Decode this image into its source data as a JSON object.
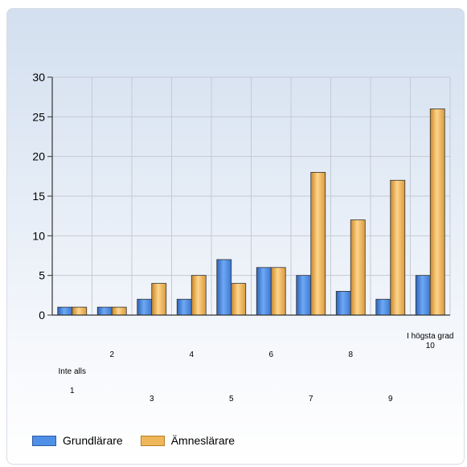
{
  "chart_data": {
    "type": "bar",
    "categories": [
      "Inte alls\n1",
      "2",
      "3",
      "4",
      "5",
      "6",
      "7",
      "8",
      "9",
      "I högsta grad\n10"
    ],
    "series": [
      {
        "name": "Grundlärare",
        "values": [
          1,
          1,
          2,
          2,
          7,
          6,
          5,
          3,
          2,
          5
        ],
        "color": "#4f8fe6"
      },
      {
        "name": "Ämneslärare",
        "values": [
          1,
          1,
          4,
          5,
          4,
          6,
          18,
          12,
          17,
          26
        ],
        "color": "#f0b65a"
      }
    ],
    "y_ticks": [
      "0",
      "5",
      "10",
      "15",
      "20",
      "25",
      "30"
    ],
    "ylim": [
      0,
      30
    ],
    "grid": true,
    "legend_position": "bottom-left"
  }
}
